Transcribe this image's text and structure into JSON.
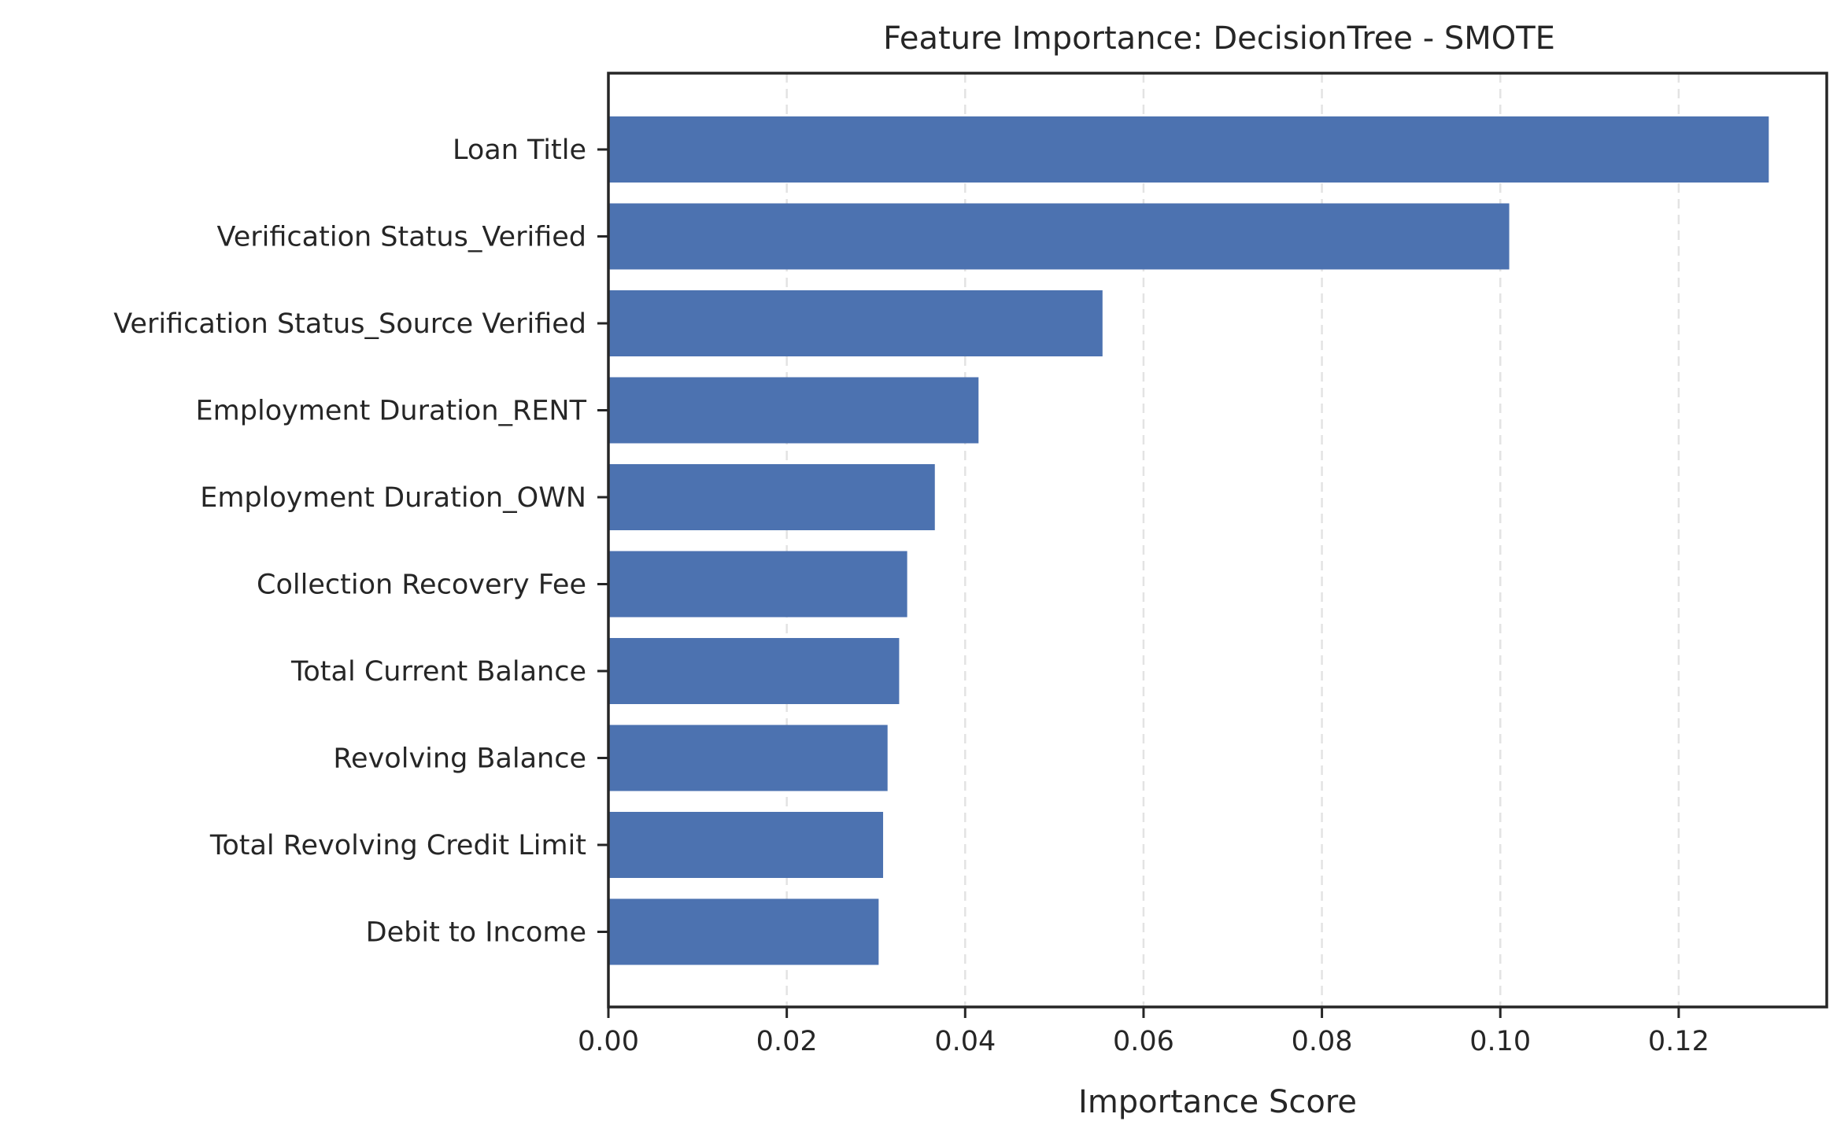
{
  "chart_data": {
    "type": "bar",
    "orientation": "horizontal",
    "title": "Feature Importance: DecisionTree - SMOTE",
    "xlabel": "Importance Score",
    "ylabel": "",
    "categories": [
      "Loan Title",
      "Verification Status_Verified",
      "Verification Status_Source Verified",
      "Employment Duration_RENT",
      "Employment Duration_OWN",
      "Collection Recovery Fee",
      "Total Current Balance",
      "Revolving Balance",
      "Total Revolving Credit Limit",
      "Debit to Income"
    ],
    "values": [
      0.1301,
      0.101,
      0.0554,
      0.0415,
      0.0366,
      0.0335,
      0.0326,
      0.0313,
      0.0308,
      0.0303
    ],
    "xlim": [
      0,
      0.1366
    ],
    "xticks": [
      0.0,
      0.02,
      0.04,
      0.06,
      0.08,
      0.1,
      0.12
    ],
    "xtick_labels": [
      "0.00",
      "0.02",
      "0.04",
      "0.06",
      "0.08",
      "0.10",
      "0.12"
    ],
    "grid": "x-dashed",
    "legend": "none",
    "bar_color": "#4c72b0"
  }
}
